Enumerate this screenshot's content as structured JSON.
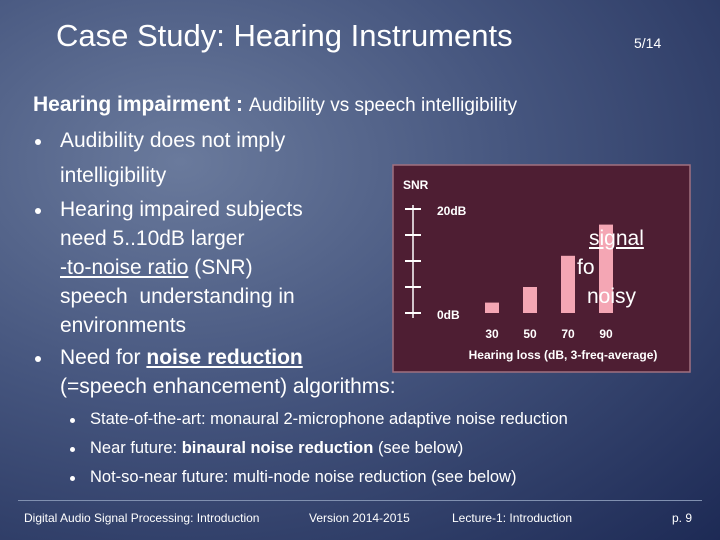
{
  "header": {
    "title": "Case Study: Hearing Instruments",
    "slide_number": "5/14"
  },
  "subtitle": {
    "bold": "Hearing impairment :",
    "rest": "Audibility vs speech intelligibility"
  },
  "body": [
    [
      "Audibility does not imply",
      "intelligibility"
    ],
    [
      "Hearing impaired subjects",
      "need 5..10dB larger",
      "signal",
      "-to-noise ratio",
      "(SNR)",
      "fo",
      "speech  understanding in",
      "noisy",
      "environments"
    ],
    [
      "Need for",
      "noise reduction",
      "(=speech enhancement) algorithms:"
    ]
  ],
  "sub_bullets": [
    [
      "State-of-the-art: monaural 2-microphone adaptive noise reduction"
    ],
    [
      "Near future:",
      "binaural noise reduction",
      "(see below)"
    ],
    [
      "Not-so-near future: multi-node noise reduction (see below)"
    ]
  ],
  "chart_data": {
    "type": "bar",
    "y_label": "SNR",
    "x_label": "Hearing loss (dB, 3-freq-average)",
    "categories": [
      "30",
      "50",
      "70",
      "90"
    ],
    "values": [
      2,
      5,
      11,
      17
    ],
    "color": "#f4a6b4",
    "ylim": [
      0,
      20
    ],
    "yticks": [
      {
        "value": 0,
        "label": "0dB"
      },
      {
        "value": 5,
        "label": null
      },
      {
        "value": 10,
        "label": null
      },
      {
        "value": 15,
        "label": null
      },
      {
        "value": 20,
        "label": "20dB"
      }
    ]
  },
  "footer": [
    "Digital Audio Signal Processing: Introduction",
    "Version 2014-2015",
    "Lecture-1: Introduction",
    "p. 9"
  ]
}
